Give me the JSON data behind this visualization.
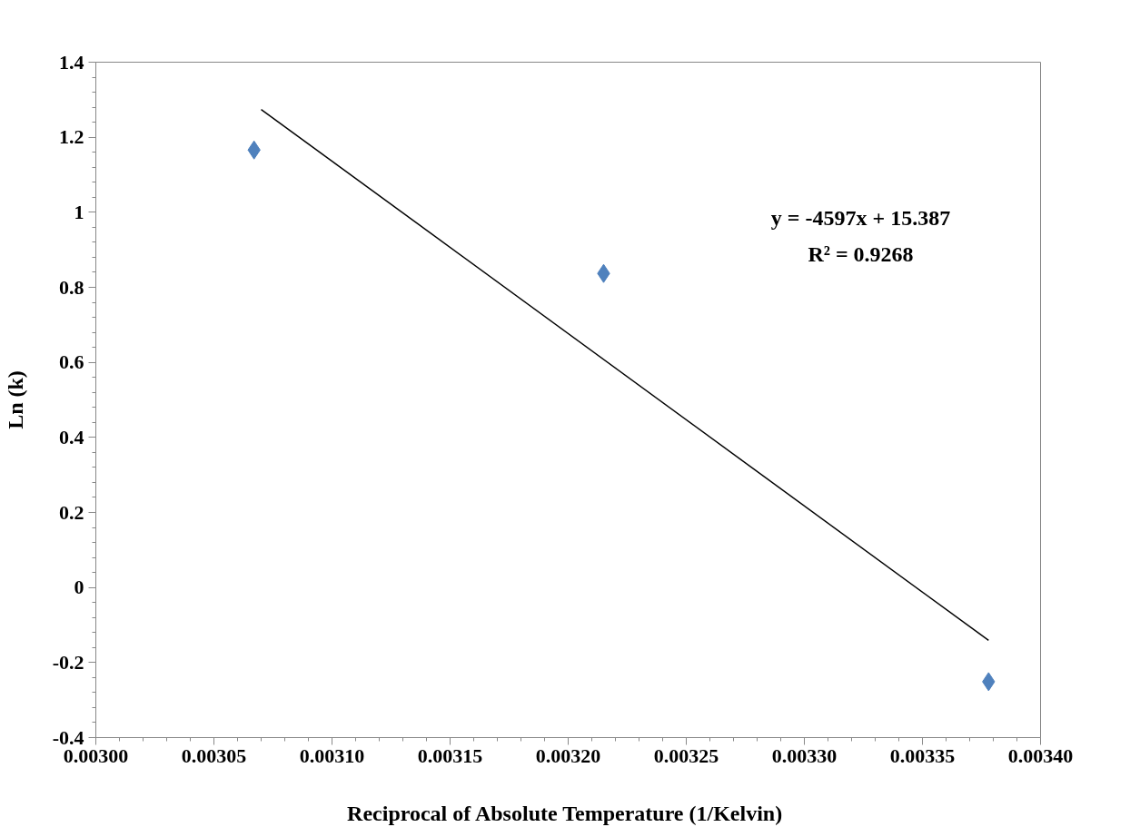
{
  "chart_data": {
    "type": "scatter",
    "xlabel": "Reciprocal of Absolute Temperature  (1/Kelvin)",
    "ylabel": "Ln (k)",
    "grid": false,
    "xlim": [
      0.003,
      0.0034
    ],
    "ylim": [
      -0.4,
      1.4
    ],
    "xticks": [
      {
        "value": 0.003,
        "label": "0.00300"
      },
      {
        "value": 0.00305,
        "label": "0.00305"
      },
      {
        "value": 0.0031,
        "label": "0.00310"
      },
      {
        "value": 0.00315,
        "label": "0.00315"
      },
      {
        "value": 0.0032,
        "label": "0.00320"
      },
      {
        "value": 0.00325,
        "label": "0.00325"
      },
      {
        "value": 0.0033,
        "label": "0.00330"
      },
      {
        "value": 0.00335,
        "label": "0.00335"
      },
      {
        "value": 0.0034,
        "label": "0.00340"
      }
    ],
    "yticks": [
      -0.4,
      -0.2,
      0,
      0.2,
      0.4,
      0.6,
      0.8,
      1,
      1.2,
      1.4
    ],
    "series": [
      {
        "marker": "diamond",
        "color": "#4f81bd",
        "x": [
          0.003067,
          0.003215,
          0.003378
        ],
        "values": [
          1.166,
          0.837,
          -0.251
        ]
      },
      {
        "type": "line",
        "color": "#000000",
        "x": [
          0.00307,
          0.003378
        ],
        "values": [
          1.274,
          -0.141
        ]
      }
    ],
    "annotations": [
      "y = -4597x + 15.387",
      "R² = 0.9268"
    ]
  }
}
